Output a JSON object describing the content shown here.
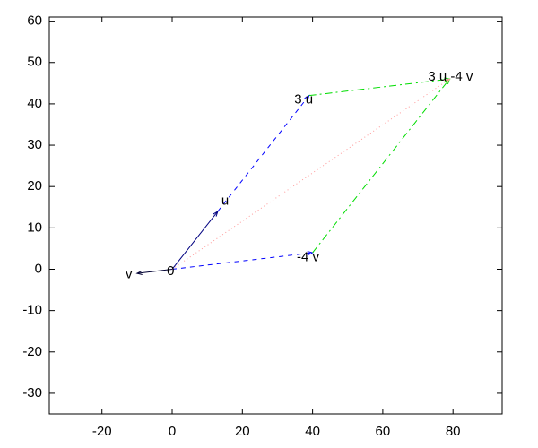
{
  "chart_data": {
    "type": "vector",
    "xlim": [
      -35,
      94
    ],
    "ylim": [
      -35,
      61
    ],
    "xticks": [
      -20,
      0,
      20,
      40,
      60,
      80
    ],
    "yticks": [
      -30,
      -20,
      -10,
      0,
      10,
      20,
      30,
      40,
      50,
      60
    ],
    "segments": [
      {
        "x": [
          0,
          13
        ],
        "y": [
          0,
          14
        ],
        "color": "#000080",
        "dash": "solid",
        "arrow": true
      },
      {
        "x": [
          0,
          -10
        ],
        "y": [
          0,
          -1
        ],
        "color": "#000033",
        "dash": "solid",
        "arrow": true
      },
      {
        "x": [
          13,
          39
        ],
        "y": [
          14,
          42
        ],
        "color": "#0000ff",
        "dash": "dashed",
        "arrow": true
      },
      {
        "x": [
          0,
          40
        ],
        "y": [
          0,
          4
        ],
        "color": "#0000ff",
        "dash": "dashed",
        "arrow": true
      },
      {
        "x": [
          39,
          79
        ],
        "y": [
          42,
          46
        ],
        "color": "#00dd00",
        "dash": "dashdot",
        "arrow": true
      },
      {
        "x": [
          40,
          79
        ],
        "y": [
          4,
          46
        ],
        "color": "#00dd00",
        "dash": "dashdot",
        "arrow": true
      },
      {
        "x": [
          0,
          79
        ],
        "y": [
          0,
          46
        ],
        "color": "#ff9999",
        "dash": "dotted",
        "arrow": true
      }
    ],
    "labels": [
      {
        "text": "u",
        "x": 14,
        "y": 16.5
      },
      {
        "text": "v",
        "x": -13.3,
        "y": -1.3
      },
      {
        "text": "0",
        "x": -1.5,
        "y": -0.6
      },
      {
        "text": "3 u",
        "x": 34.8,
        "y": 41
      },
      {
        "text": "-4 v",
        "x": 35.5,
        "y": 2.8
      },
      {
        "text": "3 u -4 v",
        "x": 72.9,
        "y": 46.5
      }
    ]
  }
}
